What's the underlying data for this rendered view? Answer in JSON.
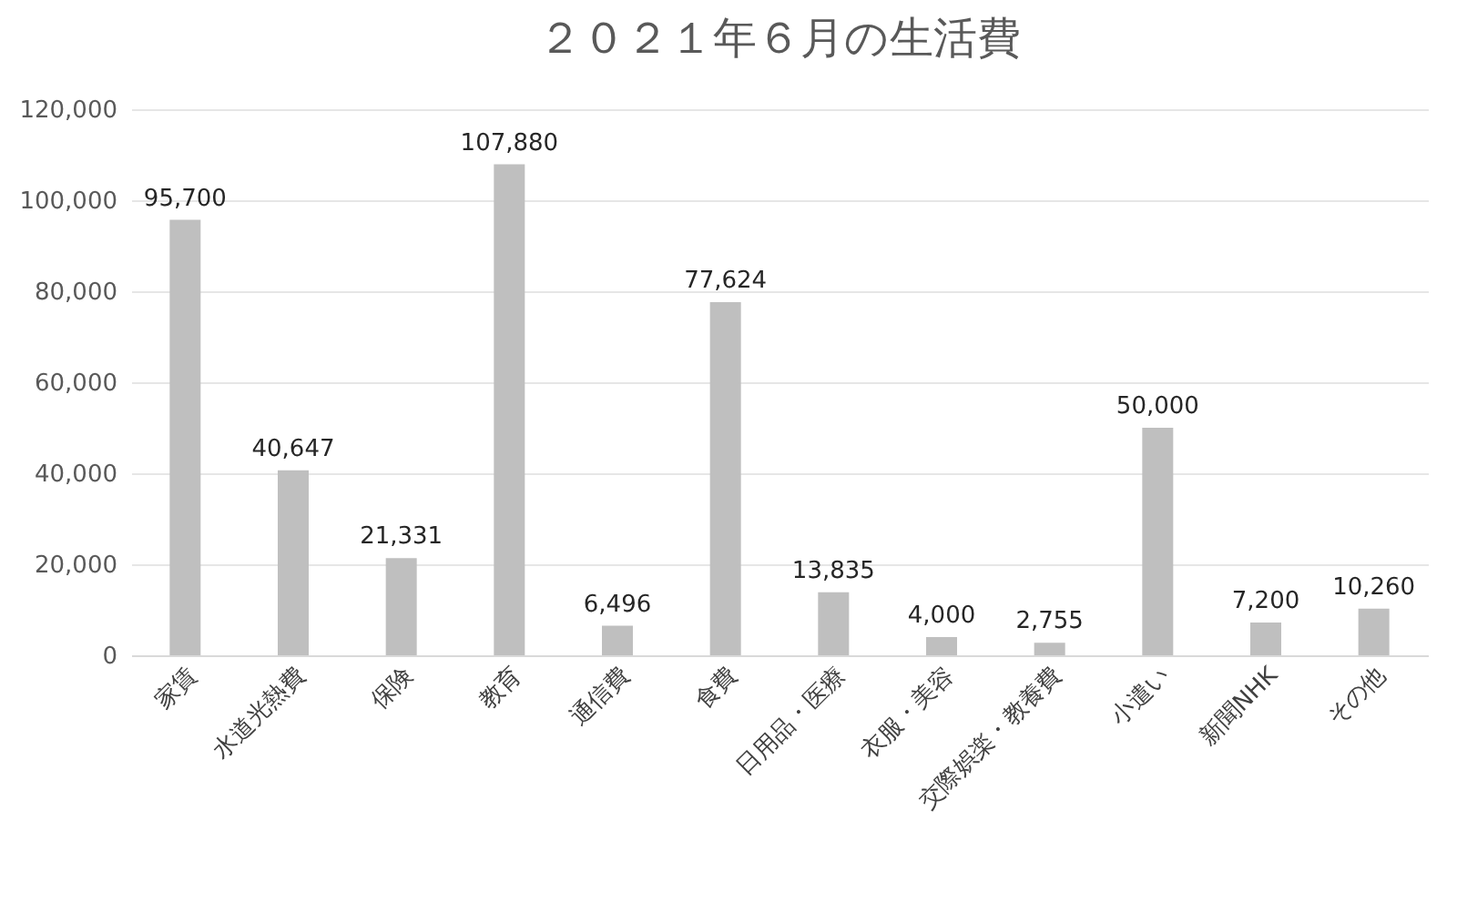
{
  "chart_data": {
    "type": "bar",
    "title": "２０２１年６月の生活費",
    "categories": [
      "家賃",
      "水道光熱費",
      "保険",
      "教育",
      "通信費",
      "食費",
      "日用品・医療",
      "衣服・美容",
      "交際娯楽・教養費",
      "小遣い",
      "新聞NHK",
      "その他"
    ],
    "values": [
      95700,
      40647,
      21331,
      107880,
      6496,
      77624,
      13835,
      4000,
      2755,
      50000,
      7200,
      10260
    ],
    "value_labels": [
      "95,700",
      "40,647",
      "21,331",
      "107,880",
      "6,496",
      "77,624",
      "13,835",
      "4,000",
      "2,755",
      "50,000",
      "7,200",
      "10,260"
    ],
    "color": "#bfbfbf",
    "ylim": [
      0,
      120000
    ],
    "yticks": [
      0,
      {
        "value": 20000,
        "label": "20,000"
      },
      {
        "value": 40000,
        "label": "40,000"
      },
      {
        "value": 60000,
        "label": "60,000"
      },
      {
        "value": 80000,
        "label": "80,000"
      },
      {
        "value": 100000,
        "label": "100,000"
      },
      {
        "value": 120000,
        "label": "120,000"
      }
    ],
    "grid": "y"
  }
}
